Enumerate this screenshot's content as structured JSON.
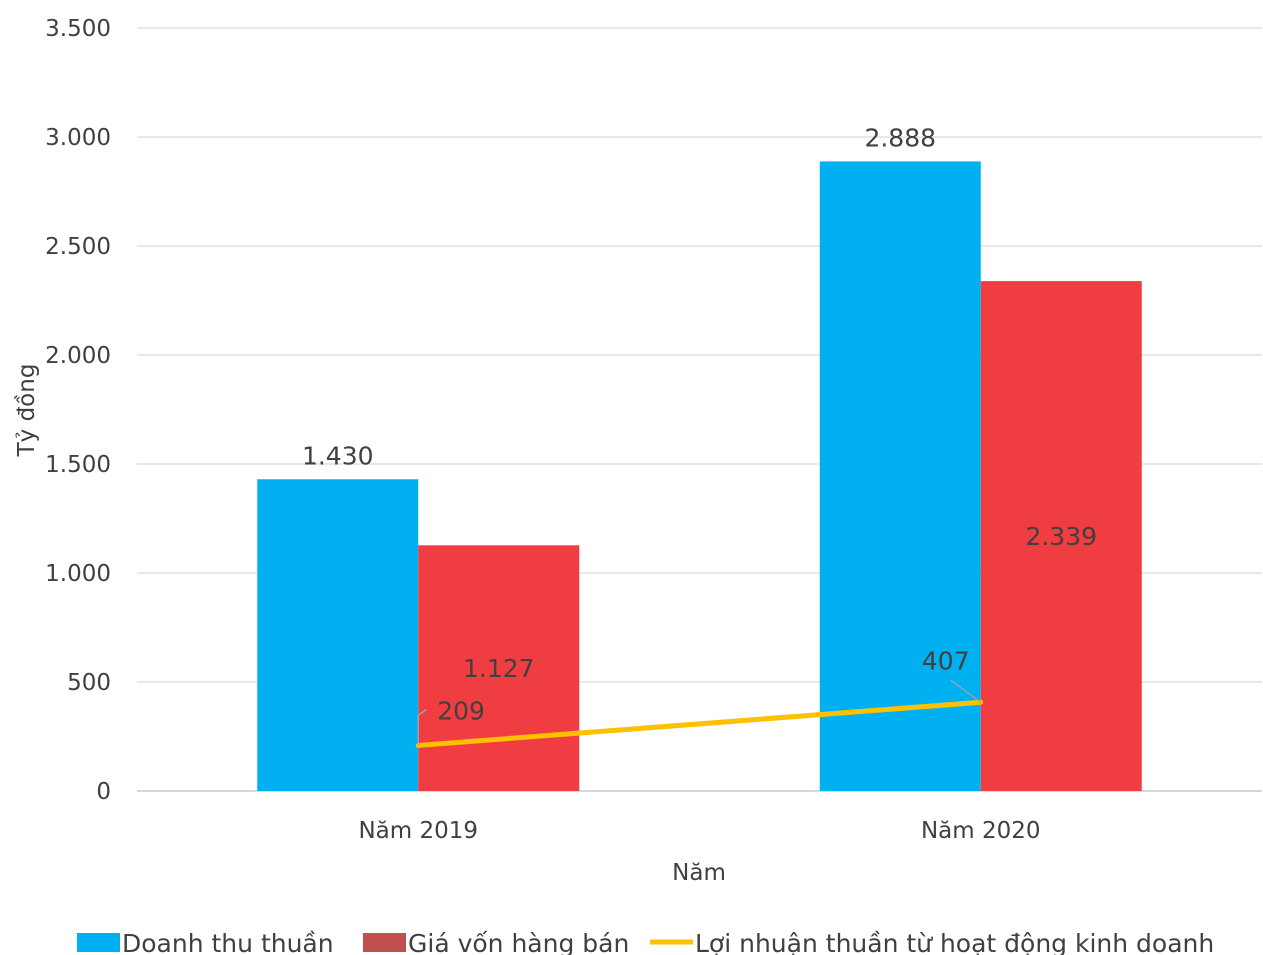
{
  "chart_data": {
    "type": "bar",
    "title": "",
    "xlabel": "Năm",
    "ylabel": "Tỷ đồng",
    "ylim": [
      0,
      3500
    ],
    "yticks": [
      0,
      500,
      1000,
      1500,
      2000,
      2500,
      3000,
      3500
    ],
    "ytick_labels": [
      "0",
      "500",
      "1.000",
      "1.500",
      "2.000",
      "2.500",
      "3.000",
      "3.500"
    ],
    "categories": [
      "Năm 2019",
      "Năm 2020"
    ],
    "grid": true,
    "legend_position": "bottom",
    "series": [
      {
        "name": "Doanh thu thuần",
        "type": "bar",
        "color": "#00B0F0",
        "values": [
          1430,
          2888
        ],
        "labels": [
          "1.430",
          "2.888"
        ]
      },
      {
        "name": "Giá vốn hàng bán",
        "type": "bar",
        "color": "#EF3D42",
        "legend_color": "#C0504D",
        "values": [
          1127,
          2339
        ],
        "labels": [
          "1.127",
          "2.339"
        ]
      },
      {
        "name": "Lợi nhuận thuần từ hoạt động kinh doanh",
        "type": "line",
        "color": "#FFC000",
        "values": [
          209,
          407
        ],
        "labels": [
          "209",
          "407"
        ]
      }
    ]
  }
}
